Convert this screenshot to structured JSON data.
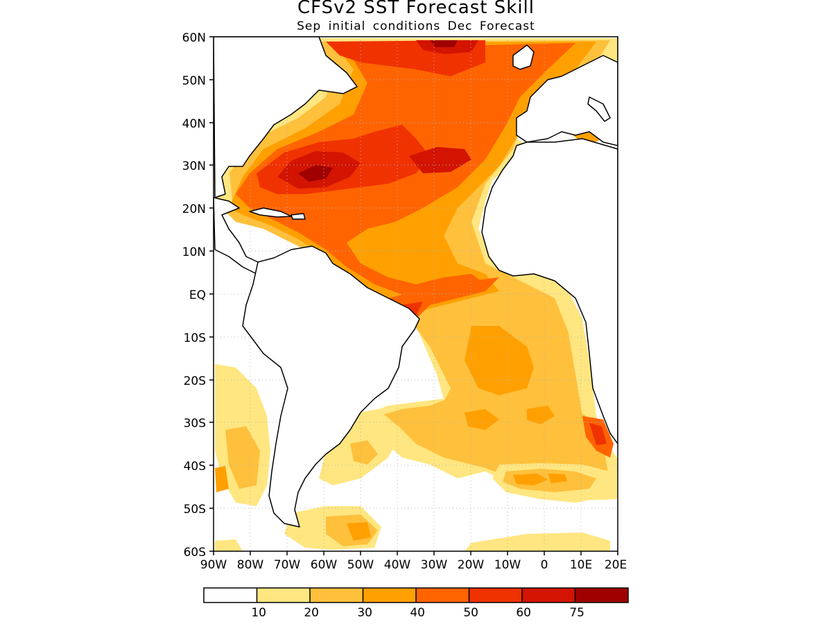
{
  "title": "CFSv2 SST Forecast Skill",
  "subtitle": "Sep initial conditions  Dec Forecast",
  "map": {
    "lat_labels": [
      "60N",
      "50N",
      "40N",
      "30N",
      "20N",
      "10N",
      "EQ",
      "10S",
      "20S",
      "30S",
      "40S",
      "50S",
      "60S"
    ],
    "lon_labels": [
      "90W",
      "80W",
      "70W",
      "60W",
      "50W",
      "40W",
      "30W",
      "20W",
      "10W",
      "0",
      "10E",
      "20E"
    ],
    "lat_range": [
      -60,
      60
    ],
    "lon_range": [
      -90,
      20
    ],
    "grid": "dotted"
  },
  "colorbar": {
    "colors": [
      "#ffffff",
      "#ffe680",
      "#ffc03c",
      "#ffa000",
      "#ff6400",
      "#f03200",
      "#d21400",
      "#a00000"
    ],
    "tick_labels": [
      "10",
      "20",
      "30",
      "40",
      "50",
      "60",
      "75"
    ]
  }
}
